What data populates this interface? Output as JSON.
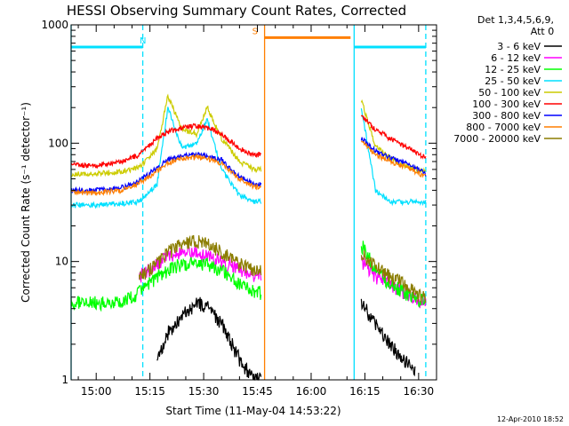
{
  "chart_data": {
    "type": "line",
    "title": "HESSI Observing Summary Count Rates, Corrected",
    "xlabel": "Start Time (11-May-04 14:53:22)",
    "ylabel": "Corrected Count Rate (s⁻¹ detector⁻¹)",
    "y_scale": "log",
    "ylim": [
      1,
      1000
    ],
    "xlim": [
      "14:53",
      "16:35"
    ],
    "x_ticks": [
      "15:00",
      "15:15",
      "15:30",
      "15:45",
      "16:00",
      "16:15",
      "16:30"
    ],
    "y_ticks": [
      "1",
      "10",
      "100",
      "1000"
    ],
    "legend_title_1": "Det 1,3,4,5,6,9,",
    "legend_title_2": "Att 0",
    "legend_position": "outside-right",
    "timestamp": "12-Apr-2010 18:52",
    "data_gaps": [
      [
        "15:46",
        "16:12"
      ]
    ],
    "flags": [
      {
        "label": "N",
        "start": "14:53",
        "end": "15:13",
        "y": 650,
        "color": "#00e0ff"
      },
      {
        "label": "S",
        "start": "15:47",
        "end": "16:11",
        "y": 780,
        "color": "#ff7f00"
      },
      {
        "label": "",
        "start": "16:12",
        "end": "16:32",
        "y": 650,
        "color": "#00e0ff"
      }
    ],
    "vertical_lines": [
      {
        "time": "14:53",
        "color": "#00e0ff",
        "style": "solid"
      },
      {
        "time": "15:13",
        "color": "#00e0ff",
        "style": "dashed"
      },
      {
        "time": "15:47",
        "color": "#ff7f00",
        "style": "solid"
      },
      {
        "time": "16:12",
        "color": "#00e0ff",
        "style": "solid"
      },
      {
        "time": "16:32",
        "color": "#00e0ff",
        "style": "dashed"
      }
    ],
    "x": [
      "14:53",
      "15:00",
      "15:07",
      "15:12",
      "15:17",
      "15:20",
      "15:24",
      "15:28",
      "15:31",
      "15:35",
      "15:40",
      "15:44",
      "15:46",
      "16:12",
      "16:14",
      "16:18",
      "16:22",
      "16:26",
      "16:29",
      "16:32"
    ],
    "series": [
      {
        "name": "3 - 6 keV",
        "color": "#000000",
        "values": [
          null,
          null,
          null,
          null,
          1.5,
          2.5,
          3.5,
          4.5,
          4.2,
          3.0,
          1.5,
          1.0,
          1.0,
          null,
          4.5,
          3.0,
          2.0,
          1.5,
          1.2,
          null
        ]
      },
      {
        "name": "6 - 12 keV",
        "color": "#ff00ff",
        "values": [
          null,
          null,
          null,
          7.5,
          9.5,
          11,
          12,
          12,
          11,
          10,
          8.5,
          7.5,
          7.5,
          null,
          10,
          7.5,
          6.5,
          5.5,
          4.8,
          4.5
        ]
      },
      {
        "name": "12 - 25 keV",
        "color": "#00ff00",
        "values": [
          4.5,
          4.5,
          4.5,
          5.5,
          7.5,
          8.5,
          9.5,
          10,
          9.5,
          8.5,
          6.5,
          5.5,
          5.5,
          null,
          14,
          8.5,
          6.5,
          5.5,
          5.0,
          4.5
        ]
      },
      {
        "name": "25 - 50 keV",
        "color": "#00e0ff",
        "values": [
          30,
          30,
          31,
          32,
          45,
          200,
          90,
          100,
          160,
          60,
          36,
          32,
          32,
          null,
          200,
          40,
          32,
          32,
          32,
          32
        ]
      },
      {
        "name": "50 - 100 keV",
        "color": "#cccc00",
        "values": [
          55,
          55,
          58,
          62,
          90,
          250,
          130,
          120,
          200,
          110,
          70,
          60,
          60,
          null,
          230,
          95,
          75,
          65,
          60,
          58
        ]
      },
      {
        "name": "100 - 300 keV",
        "color": "#ff0000",
        "values": [
          65,
          65,
          70,
          80,
          110,
          125,
          135,
          140,
          135,
          120,
          90,
          80,
          80,
          null,
          170,
          130,
          110,
          95,
          85,
          75
        ]
      },
      {
        "name": "300 - 800 keV",
        "color": "#0000ff",
        "values": [
          40,
          40,
          42,
          48,
          62,
          72,
          78,
          80,
          78,
          72,
          52,
          45,
          45,
          null,
          110,
          85,
          75,
          68,
          62,
          55
        ]
      },
      {
        "name": "800 - 7000 keV",
        "color": "#ff7f00",
        "values": [
          38,
          38,
          40,
          46,
          58,
          68,
          74,
          76,
          74,
          68,
          50,
          43,
          43,
          null,
          105,
          80,
          70,
          64,
          58,
          52
        ]
      },
      {
        "name": "7000 - 20000 keV",
        "color": "#8b7d00",
        "values": [
          null,
          null,
          null,
          7.5,
          9.5,
          12,
          14,
          15,
          14,
          12,
          9.5,
          8.5,
          8.5,
          null,
          12,
          9,
          7.5,
          6.5,
          5.5,
          4.8
        ]
      }
    ]
  }
}
